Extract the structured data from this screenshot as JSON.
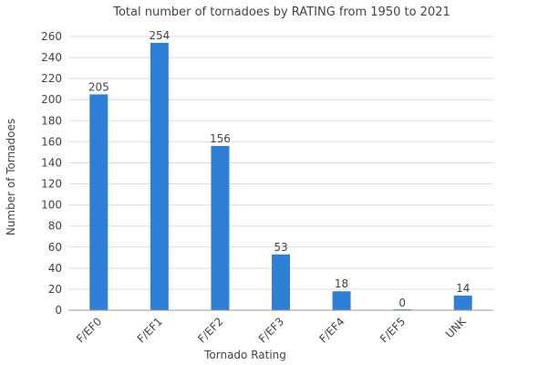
{
  "chart_data": {
    "type": "bar",
    "title": "Total number of tornadoes by RATING from 1950 to 2021",
    "xlabel": "Tornado Rating",
    "ylabel": "Number of Tornadoes",
    "categories": [
      "F/EF0",
      "F/EF1",
      "F/EF2",
      "F/EF3",
      "F/EF4",
      "F/EF5",
      "UNK"
    ],
    "values": [
      205,
      254,
      156,
      53,
      18,
      0,
      14
    ],
    "ylim": [
      0,
      260
    ],
    "yticks": [
      0,
      20,
      40,
      60,
      80,
      100,
      120,
      140,
      160,
      180,
      200,
      220,
      240,
      260
    ],
    "grid": true,
    "legend": "none",
    "bar_color": "#2e80d6",
    "data_labels": true
  }
}
